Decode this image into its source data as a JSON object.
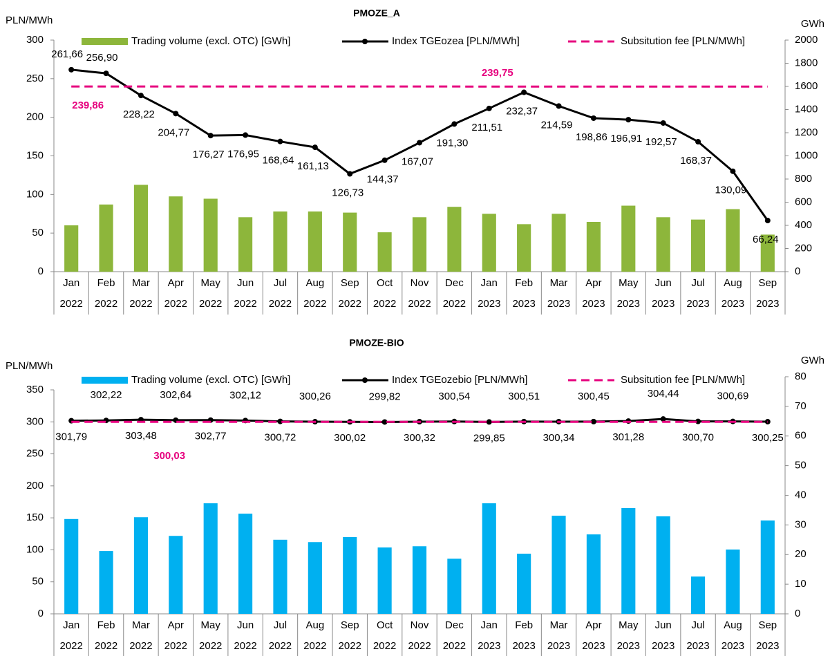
{
  "chart_data": [
    {
      "type": "combo",
      "title": "PMOZE_A",
      "y_label": "PLN/MWh",
      "y2_label": "GWh",
      "categories": [
        [
          "Jan",
          "2022"
        ],
        [
          "Feb",
          "2022"
        ],
        [
          "Mar",
          "2022"
        ],
        [
          "Apr",
          "2022"
        ],
        [
          "May",
          "2022"
        ],
        [
          "Jun",
          "2022"
        ],
        [
          "Jul",
          "2022"
        ],
        [
          "Aug",
          "2022"
        ],
        [
          "Sep",
          "2022"
        ],
        [
          "Oct",
          "2022"
        ],
        [
          "Nov",
          "2022"
        ],
        [
          "Dec",
          "2022"
        ],
        [
          "Jan",
          "2023"
        ],
        [
          "Feb",
          "2023"
        ],
        [
          "Mar",
          "2023"
        ],
        [
          "Apr",
          "2023"
        ],
        [
          "May",
          "2023"
        ],
        [
          "Jun",
          "2023"
        ],
        [
          "Jul",
          "2023"
        ],
        [
          "Aug",
          "2023"
        ],
        [
          "Sep",
          "2023"
        ]
      ],
      "ylim": [
        0,
        300
      ],
      "yticks": [
        0,
        50,
        100,
        150,
        200,
        250,
        300
      ],
      "y2lim": [
        0,
        2000
      ],
      "y2ticks": [
        0,
        200,
        400,
        600,
        800,
        1000,
        1200,
        1400,
        1600,
        1800,
        2000
      ],
      "series": [
        {
          "name": "Trading volume (excl. OTC) [GWh]",
          "type": "bar",
          "axis": "y2",
          "color": "#8db63b",
          "values": [
            400,
            580,
            750,
            650,
            630,
            470,
            520,
            520,
            510,
            340,
            470,
            560,
            500,
            410,
            500,
            430,
            570,
            470,
            450,
            540,
            320
          ]
        },
        {
          "name": "Index TGEozea [PLN/MWh]",
          "type": "line",
          "color": "#000000",
          "values": [
            261.66,
            256.9,
            228.22,
            204.77,
            176.27,
            176.95,
            168.64,
            161.13,
            126.73,
            144.37,
            167.07,
            191.3,
            211.51,
            232.37,
            214.59,
            198.86,
            196.91,
            192.57,
            168.37,
            130.09,
            66.24
          ],
          "value_labels": [
            "261,66",
            "256,90",
            "228,22",
            "204,77",
            "176,27",
            "176,95",
            "168,64",
            "161,13",
            "126,73",
            "144,37",
            "167,07",
            "191,30",
            "211,51",
            "232,37",
            "214,59",
            "198,86",
            "196,91",
            "192,57",
            "168,37",
            "130,09",
            "66,24"
          ]
        },
        {
          "name": "Subsitution fee [PLN/MWh]",
          "type": "dashed",
          "color": "#e6007e",
          "values": [
            239.86,
            239.86,
            239.86,
            239.86,
            239.86,
            239.86,
            239.86,
            239.86,
            239.86,
            239.86,
            239.86,
            239.86,
            239.75,
            239.75,
            239.75,
            239.75,
            239.75,
            239.75,
            239.75,
            239.75,
            239.75
          ],
          "value_labels": [
            "239,86",
            null,
            null,
            null,
            null,
            null,
            null,
            null,
            null,
            null,
            null,
            null,
            "239,75",
            null,
            null,
            null,
            null,
            null,
            null,
            null,
            null
          ]
        }
      ]
    },
    {
      "type": "combo",
      "title": "PMOZE-BIO",
      "y_label": "PLN/MWh",
      "y2_label": "GWh",
      "categories": [
        [
          "Jan",
          "2022"
        ],
        [
          "Feb",
          "2022"
        ],
        [
          "Mar",
          "2022"
        ],
        [
          "Apr",
          "2022"
        ],
        [
          "May",
          "2022"
        ],
        [
          "Jun",
          "2022"
        ],
        [
          "Jul",
          "2022"
        ],
        [
          "Aug",
          "2022"
        ],
        [
          "Sep",
          "2022"
        ],
        [
          "Oct",
          "2022"
        ],
        [
          "Nov",
          "2022"
        ],
        [
          "Dec",
          "2022"
        ],
        [
          "Jan",
          "2023"
        ],
        [
          "Feb",
          "2023"
        ],
        [
          "Mar",
          "2023"
        ],
        [
          "Apr",
          "2023"
        ],
        [
          "May",
          "2023"
        ],
        [
          "Jun",
          "2023"
        ],
        [
          "Jul",
          "2023"
        ],
        [
          "Aug",
          "2023"
        ],
        [
          "Sep",
          "2023"
        ]
      ],
      "ylim": [
        0,
        350
      ],
      "yticks": [
        0,
        50,
        100,
        150,
        200,
        250,
        300,
        350
      ],
      "y2lim": [
        0,
        80
      ],
      "y2ticks": [
        0,
        10,
        20,
        30,
        40,
        50,
        60,
        70,
        80
      ],
      "series": [
        {
          "name": "Trading volume (excl. OTC) [GWh]",
          "type": "bar",
          "axis": "y2",
          "color": "#00b0f0",
          "values": [
            32,
            21.2,
            32.6,
            26.3,
            37.3,
            33.8,
            25,
            24.2,
            25.9,
            22.4,
            22.8,
            18.6,
            37.3,
            20.3,
            33.1,
            26.8,
            35.7,
            32.9,
            12.6,
            21.7,
            31.5
          ]
        },
        {
          "name": "Index TGEozebio [PLN/MWh]",
          "type": "line",
          "color": "#000000",
          "values": [
            301.79,
            302.22,
            303.48,
            302.64,
            302.77,
            302.12,
            300.72,
            300.26,
            300.02,
            299.82,
            300.32,
            300.54,
            299.85,
            300.51,
            300.34,
            300.45,
            301.28,
            304.44,
            300.7,
            300.69,
            300.25
          ],
          "value_labels": [
            "301,79",
            "302,22",
            "303,48",
            "302,64",
            "302,77",
            "302,12",
            "300,72",
            "300,26",
            "300,02",
            "299,82",
            "300,32",
            "300,54",
            "299,85",
            "300,51",
            "300,34",
            "300,45",
            "301,28",
            "304,44",
            "300,70",
            "300,69",
            "300,25"
          ]
        },
        {
          "name": "Subsitution fee [PLN/MWh]",
          "type": "dashed",
          "color": "#e6007e",
          "values": [
            300.03,
            300.03,
            300.03,
            300.03,
            300.03,
            300.03,
            300.03,
            300.03,
            300.03,
            300.03,
            300.03,
            300.03,
            300.03,
            300.03,
            300.03,
            300.03,
            300.03,
            300.03,
            300.03,
            300.03,
            300.03
          ],
          "value_labels": [
            "300,03",
            null,
            null,
            null,
            null,
            null,
            null,
            null,
            null,
            null,
            null,
            null,
            null,
            null,
            null,
            null,
            null,
            null,
            null,
            null,
            null
          ]
        }
      ]
    }
  ]
}
